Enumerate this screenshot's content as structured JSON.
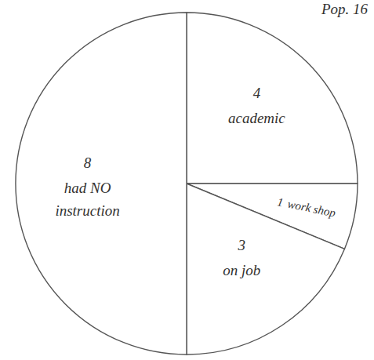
{
  "chart_data": {
    "type": "pie",
    "title": "Pop. 16",
    "categories": [
      "academic",
      "work shop",
      "on job",
      "had NO instruction"
    ],
    "values": [
      4,
      1,
      3,
      8
    ],
    "color": "#ffffff",
    "data_labels": true
  }
}
